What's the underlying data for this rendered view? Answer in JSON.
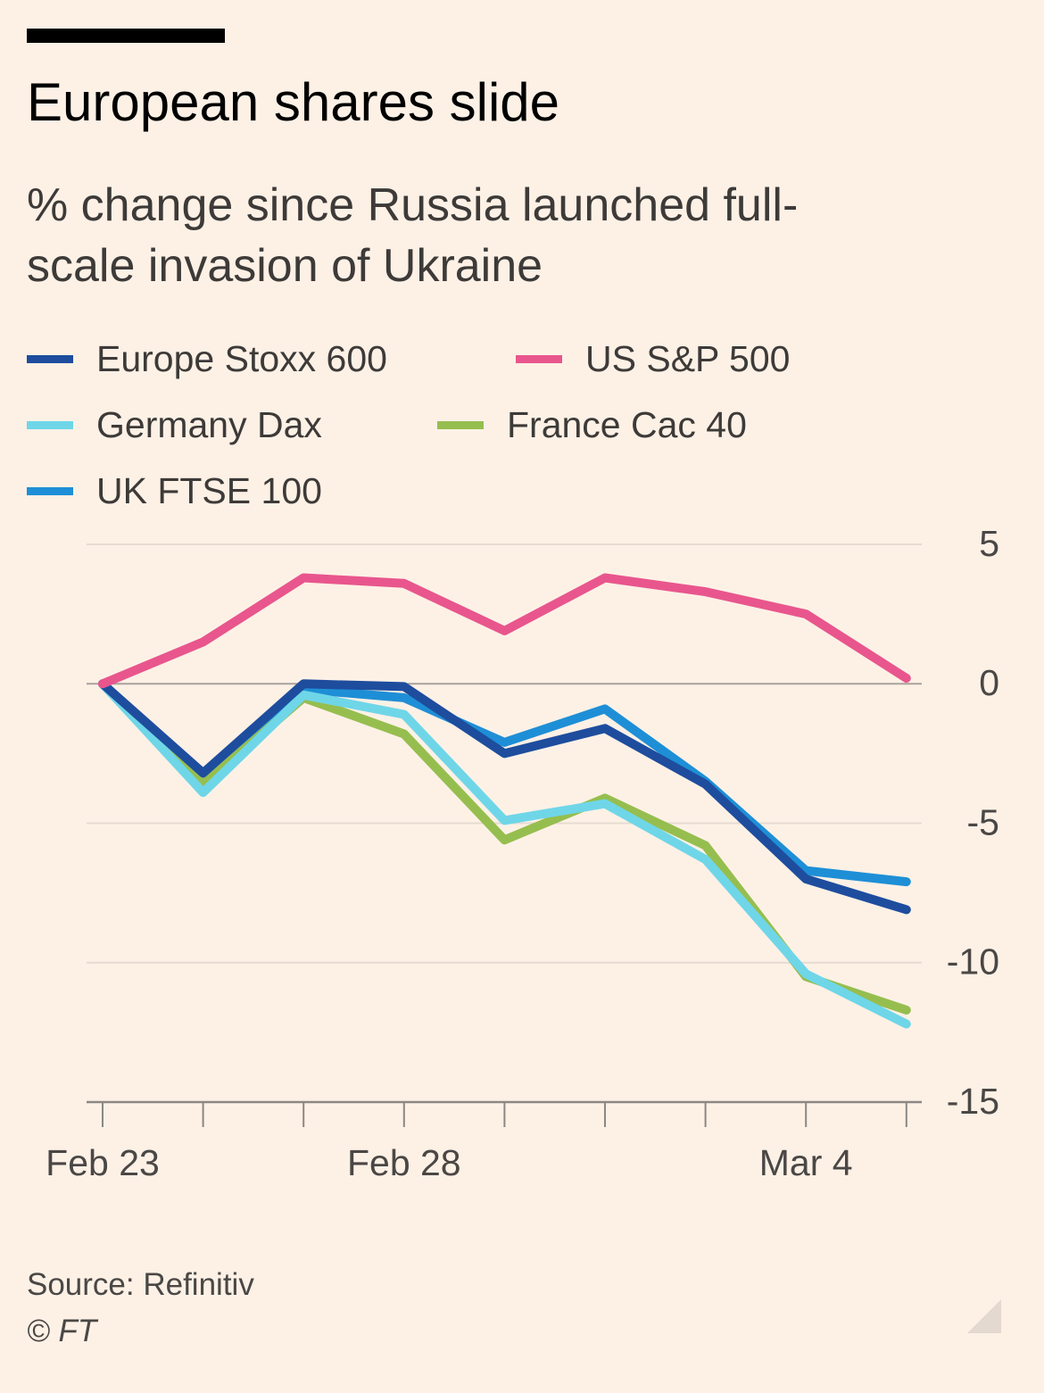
{
  "header": {
    "title": "European shares slide",
    "subtitle": "% change since Russia launched full-scale invasion of Ukraine"
  },
  "footer": {
    "source": "Source: Refinitiv",
    "copyright": "© FT"
  },
  "chart_data": {
    "type": "line",
    "title": "European shares slide",
    "subtitle": "% change since Russia launched full-scale invasion of Ukraine",
    "ylim": [
      -15,
      5
    ],
    "yticks": [
      5,
      0,
      -5,
      -10,
      -15
    ],
    "ytick_labels": [
      "5",
      "0",
      "-5",
      "-10",
      "-15"
    ],
    "y_axis_position": "right",
    "grid": true,
    "x": [
      "Feb 23",
      "Feb 24",
      "Feb 25",
      "Feb 28",
      "Mar 1",
      "Mar 2",
      "Mar 3",
      "Mar 4",
      "Mar 7"
    ],
    "xtick_labels": [
      {
        "index": 0,
        "label": "Feb 23"
      },
      {
        "index": 3,
        "label": "Feb 28"
      },
      {
        "index": 7,
        "label": "Mar 4"
      }
    ],
    "legend_position": "top",
    "series": [
      {
        "name": "UK FTSE 100",
        "color": "#1E8FD6",
        "values": [
          0,
          -3.3,
          -0.2,
          -0.5,
          -2.1,
          -0.9,
          -3.5,
          -6.7,
          -7.1
        ]
      },
      {
        "name": "France Cac 40",
        "color": "#96BE4F",
        "values": [
          0,
          -3.6,
          -0.5,
          -1.8,
          -5.6,
          -4.1,
          -5.8,
          -10.5,
          -11.7
        ]
      },
      {
        "name": "Germany Dax",
        "color": "#6FD6E8",
        "values": [
          0,
          -3.9,
          -0.4,
          -1.1,
          -4.9,
          -4.3,
          -6.3,
          -10.4,
          -12.2
        ]
      },
      {
        "name": "Europe Stoxx 600",
        "color": "#1E4D9E",
        "values": [
          0,
          -3.2,
          0,
          -0.1,
          -2.5,
          -1.6,
          -3.6,
          -7.0,
          -8.1
        ]
      },
      {
        "name": "US S&P 500",
        "color": "#E8568D",
        "values": [
          0,
          1.5,
          3.8,
          3.6,
          1.9,
          3.8,
          3.3,
          2.5,
          0.2
        ]
      }
    ],
    "legend_order": [
      "Europe Stoxx 600",
      "US S&P 500",
      "Germany Dax",
      "France Cac 40",
      "UK FTSE 100"
    ]
  }
}
